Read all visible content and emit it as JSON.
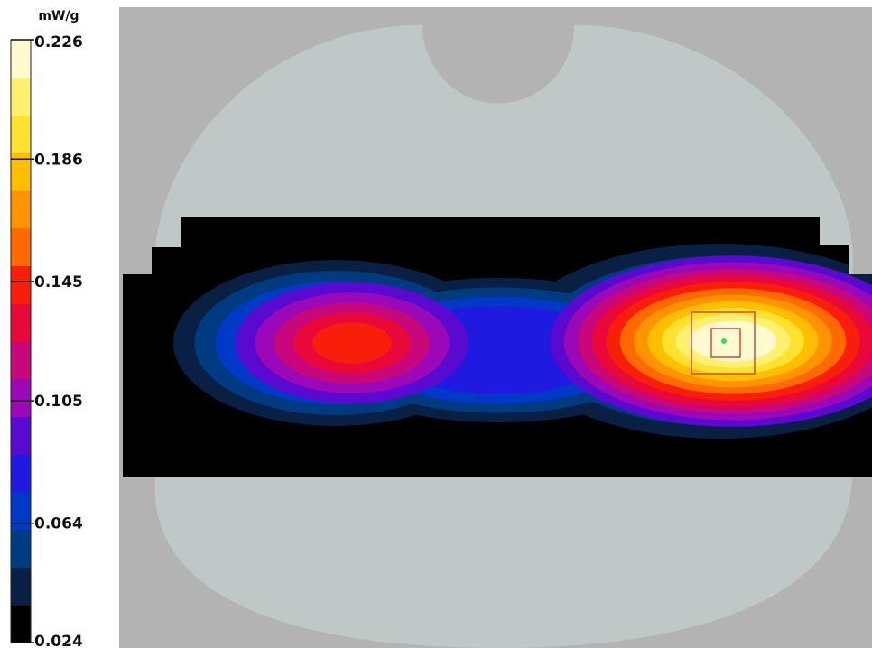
{
  "chart_data": {
    "type": "heatmap",
    "title": "",
    "colorbar": {
      "unit": "mW/g",
      "min": 0.024,
      "max": 0.226,
      "tick_values": [
        0.226,
        0.186,
        0.145,
        0.105,
        0.064,
        0.024
      ],
      "tick_labels": [
        "0.226",
        "0.186",
        "0.145",
        "0.105",
        "0.064",
        "0.024"
      ],
      "levels": 15,
      "colors_bottom_to_top": [
        "#000000",
        "#0a1f44",
        "#003a80",
        "#0038c8",
        "#1f1ae0",
        "#5a0ad0",
        "#9a08b8",
        "#c8087a",
        "#e8083a",
        "#f81e0a",
        "#ff6a00",
        "#ff9400",
        "#ffbe00",
        "#ffe230",
        "#fff070",
        "#fffad0"
      ]
    },
    "scene_colors": {
      "background": "#b3b3b3",
      "phantom": "#bfc7c7",
      "measurement_area": "#000000",
      "zoom_box": "#d04a4a",
      "peak_marker": "#30e060"
    },
    "hotspots": [
      {
        "name": "",
        "peak_value": 0.226,
        "location": "right"
      },
      {
        "name": "",
        "peak_value": 0.145,
        "location": "left"
      }
    ]
  }
}
